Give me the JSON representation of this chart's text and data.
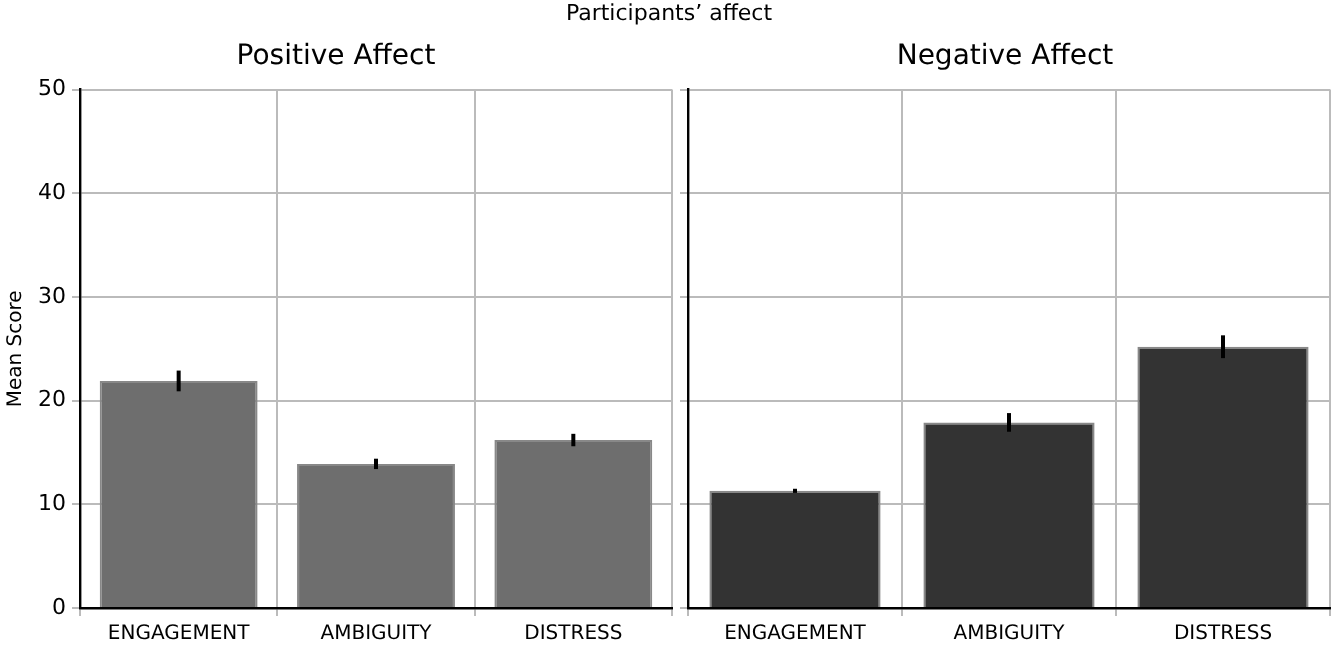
{
  "chart_data": [
    {
      "type": "bar",
      "title": "Positive Affect",
      "ylabel": "Mean Score",
      "annotations": [
        "Participants’ affect"
      ],
      "categories": [
        "ENGAGEMENT",
        "AMBIGUITY",
        "DISTRESS"
      ],
      "values": [
        21.9,
        13.9,
        16.2
      ],
      "errors": [
        1.0,
        0.5,
        0.6
      ],
      "color": "#6e6e6e",
      "ylim": [
        0,
        50
      ],
      "yticks": [
        0,
        10,
        20,
        30,
        40,
        50
      ],
      "grid": true,
      "legend": false
    },
    {
      "type": "bar",
      "title": "Negative Affect",
      "categories": [
        "ENGAGEMENT",
        "AMBIGUITY",
        "DISTRESS"
      ],
      "values": [
        11.3,
        17.9,
        25.2
      ],
      "errors": [
        0.2,
        0.9,
        1.1
      ],
      "color": "#333333",
      "ylim": [
        0,
        50
      ],
      "yticks": [
        0,
        10,
        20,
        30,
        40,
        50
      ],
      "grid": true,
      "legend": false,
      "tick_labels": "x"
    }
  ]
}
